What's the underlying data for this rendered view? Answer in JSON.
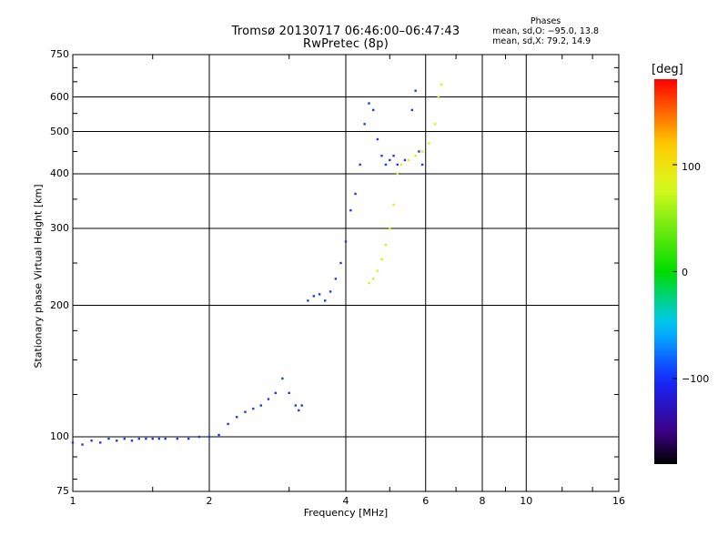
{
  "header": {
    "title": "Tromsø 20130717 06:46:00–06:47:43",
    "subtitle": "RwPretec (8p)",
    "stats_heading": "Phases",
    "stats_line1": "mean, sd,O: −95.0, 13.8",
    "stats_line2": "mean, sd,X: 79.2, 14.9"
  },
  "colorbar": {
    "label": "[deg]",
    "ticks": [
      "100",
      "0",
      "−100"
    ]
  },
  "colors": {
    "o_trace": "#1c3be0",
    "x_trace": "#d8f020",
    "grid": "#000000"
  },
  "chart_data": {
    "type": "scatter",
    "title": "Tromsø 20130717 06:46:00–06:47:43",
    "subtitle": "RwPretec (8p)",
    "xlabel": "Frequency [MHz]",
    "ylabel": "Stationary phase Virtual Height [km]",
    "x_scale": "log",
    "y_scale": "log",
    "xlim": [
      1,
      16
    ],
    "ylim": [
      75,
      750
    ],
    "x_ticks": [
      "1",
      "2",
      "4",
      "6",
      "8",
      "10",
      "16"
    ],
    "x_tick_values": [
      1,
      2,
      4,
      6,
      8,
      10,
      16
    ],
    "y_ticks": [
      "750",
      "600",
      "500",
      "400",
      "300",
      "200",
      "100",
      "75"
    ],
    "y_tick_values": [
      750,
      600,
      500,
      400,
      300,
      200,
      100,
      75
    ],
    "grid": true,
    "colorbar": {
      "label": "[deg]",
      "range": [
        -180,
        180
      ],
      "ticks": [
        100,
        0,
        -100
      ]
    },
    "series": [
      {
        "points": [
          [
            1.0,
            97
          ],
          [
            1.05,
            96
          ],
          [
            1.1,
            98
          ],
          [
            1.15,
            97
          ],
          [
            1.2,
            99
          ],
          [
            1.25,
            98
          ],
          [
            1.3,
            99
          ],
          [
            1.35,
            98
          ],
          [
            1.4,
            99
          ],
          [
            1.45,
            99
          ],
          [
            1.5,
            99
          ],
          [
            1.55,
            99
          ],
          [
            1.6,
            99
          ],
          [
            1.7,
            99
          ],
          [
            1.8,
            99
          ],
          [
            1.9,
            100
          ],
          [
            2.0,
            100
          ],
          [
            2.1,
            101
          ],
          [
            2.2,
            107
          ],
          [
            2.3,
            111
          ],
          [
            2.4,
            114
          ],
          [
            2.5,
            116
          ],
          [
            2.6,
            118
          ],
          [
            2.7,
            122
          ],
          [
            2.8,
            126
          ],
          [
            2.9,
            136
          ],
          [
            3.0,
            126
          ],
          [
            3.1,
            118
          ],
          [
            3.15,
            115
          ],
          [
            3.2,
            118
          ],
          [
            3.3,
            205
          ],
          [
            3.4,
            210
          ],
          [
            3.5,
            212
          ],
          [
            3.6,
            205
          ],
          [
            3.7,
            215
          ],
          [
            3.8,
            230
          ],
          [
            3.9,
            250
          ],
          [
            4.0,
            280
          ],
          [
            4.1,
            330
          ],
          [
            4.2,
            360
          ],
          [
            4.3,
            420
          ],
          [
            4.4,
            520
          ],
          [
            4.5,
            580
          ],
          [
            4.6,
            560
          ],
          [
            4.7,
            480
          ],
          [
            4.8,
            440
          ],
          [
            4.9,
            420
          ],
          [
            5.0,
            430
          ],
          [
            5.1,
            440
          ],
          [
            5.2,
            420
          ],
          [
            5.4,
            430
          ],
          [
            5.6,
            560
          ],
          [
            5.7,
            620
          ],
          [
            5.8,
            450
          ],
          [
            5.9,
            420
          ]
        ],
        "phase": -95
      },
      {
        "points": [
          [
            4.5,
            225
          ],
          [
            4.6,
            230
          ],
          [
            4.7,
            240
          ],
          [
            4.8,
            255
          ],
          [
            4.9,
            275
          ],
          [
            5.0,
            300
          ],
          [
            5.1,
            340
          ],
          [
            5.2,
            400
          ],
          [
            5.3,
            420
          ],
          [
            5.5,
            430
          ],
          [
            5.7,
            440
          ],
          [
            5.9,
            450
          ],
          [
            6.1,
            470
          ],
          [
            6.3,
            520
          ],
          [
            6.4,
            600
          ],
          [
            6.5,
            640
          ]
        ],
        "phase": 79
      }
    ]
  }
}
